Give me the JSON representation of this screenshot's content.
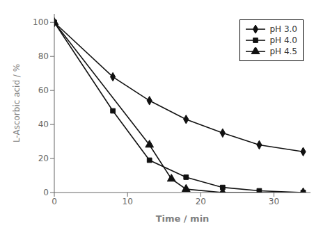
{
  "chart_data": {
    "type": "line",
    "xlabel": "Time / min",
    "ylabel": "L-Ascorbic acid / %",
    "xlim": [
      0,
      35
    ],
    "ylim": [
      0,
      105
    ],
    "xticks": [
      0,
      10,
      20,
      30
    ],
    "yticks": [
      0,
      20,
      40,
      60,
      80,
      100
    ],
    "legend": "upper right",
    "grid": false,
    "series": [
      {
        "name": "pH 3.0",
        "x": [
          0,
          8,
          13,
          18,
          23,
          28,
          34
        ],
        "values": [
          100,
          68,
          54,
          43,
          35,
          28,
          24
        ],
        "color": "#111111",
        "marker": "diamond"
      },
      {
        "name": "pH 4.0",
        "x": [
          0,
          8,
          13,
          18,
          23,
          28,
          34
        ],
        "values": [
          100,
          48,
          19,
          9,
          3,
          1,
          0
        ],
        "color": "#111111",
        "marker": "square"
      },
      {
        "name": "pH 4.5",
        "x": [
          0,
          13,
          16,
          18,
          23,
          34
        ],
        "values": [
          100,
          28,
          8,
          2,
          0,
          0
        ],
        "color": "#111111",
        "marker": "triangle"
      }
    ]
  }
}
